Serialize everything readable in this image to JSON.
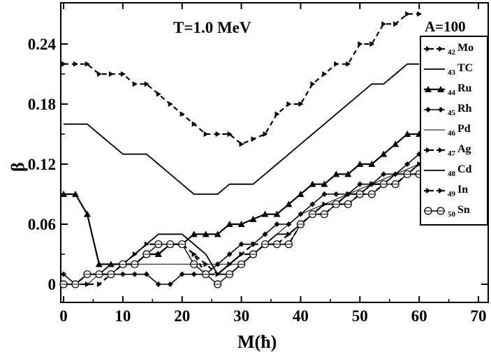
{
  "chart_data": {
    "type": "line",
    "title": "",
    "annotation": "T=1.0 MeV",
    "xlabel": "M(ħ)",
    "ylabel": "β",
    "xlim": [
      0,
      70
    ],
    "ylim": [
      -0.02,
      0.28
    ],
    "xticks": [
      "0",
      "10",
      "20",
      "30",
      "40",
      "50",
      "60",
      "70"
    ],
    "yticks": [
      "0",
      "0.06",
      "0.12",
      "0.18",
      "0.24"
    ],
    "legend": {
      "title": "A=100",
      "placement": "top-right"
    },
    "series": [
      {
        "name": "Mo",
        "z": "42",
        "style": "dash-arrow",
        "x": [
          0,
          2,
          4,
          6,
          8,
          10,
          12,
          14,
          16,
          18,
          20,
          22,
          24,
          26,
          28,
          30,
          32,
          34,
          36,
          38,
          40,
          42,
          44,
          46,
          48,
          50,
          52,
          54,
          56,
          58,
          60
        ],
        "y": [
          0.22,
          0.22,
          0.22,
          0.21,
          0.21,
          0.21,
          0.2,
          0.2,
          0.19,
          0.18,
          0.17,
          0.16,
          0.15,
          0.15,
          0.15,
          0.14,
          0.145,
          0.15,
          0.17,
          0.18,
          0.18,
          0.2,
          0.21,
          0.22,
          0.22,
          0.24,
          0.24,
          0.26,
          0.26,
          0.27,
          0.27
        ]
      },
      {
        "name": "TC",
        "z": "43",
        "style": "solid",
        "x": [
          0,
          2,
          4,
          6,
          8,
          10,
          12,
          14,
          16,
          18,
          20,
          22,
          24,
          26,
          28,
          30,
          32,
          34,
          36,
          38,
          40,
          42,
          44,
          46,
          48,
          50,
          52,
          54,
          56,
          58,
          60
        ],
        "y": [
          0.16,
          0.16,
          0.16,
          0.15,
          0.14,
          0.13,
          0.13,
          0.13,
          0.12,
          0.11,
          0.1,
          0.09,
          0.09,
          0.09,
          0.1,
          0.1,
          0.1,
          0.11,
          0.12,
          0.13,
          0.14,
          0.15,
          0.16,
          0.17,
          0.18,
          0.19,
          0.2,
          0.2,
          0.21,
          0.22,
          0.22
        ]
      },
      {
        "name": "Ru",
        "z": "44",
        "style": "solid-triangle",
        "x": [
          0,
          2,
          4,
          6,
          8,
          10,
          12,
          14,
          16,
          18,
          20,
          22,
          24,
          26,
          28,
          30,
          32,
          34,
          36,
          38,
          40,
          42,
          44,
          46,
          48,
          50,
          52,
          54,
          56,
          58,
          60
        ],
        "y": [
          0.09,
          0.09,
          0.07,
          0.02,
          0.02,
          0.02,
          0.02,
          0.03,
          0.03,
          0.04,
          0.04,
          0.05,
          0.05,
          0.05,
          0.06,
          0.06,
          0.065,
          0.07,
          0.07,
          0.08,
          0.09,
          0.1,
          0.1,
          0.11,
          0.11,
          0.12,
          0.12,
          0.13,
          0.14,
          0.15,
          0.15
        ]
      },
      {
        "name": "Rh",
        "z": "45",
        "style": "solid-diamond",
        "x": [
          0,
          2,
          4,
          6,
          8,
          10,
          12,
          14,
          16,
          18,
          20,
          22,
          24,
          26,
          28,
          30,
          32,
          34,
          36,
          38,
          40,
          42,
          44,
          46,
          48,
          50,
          52,
          54,
          56,
          58,
          60
        ],
        "y": [
          0.01,
          0.0,
          0.01,
          0.01,
          0.01,
          0.01,
          0.01,
          0.01,
          0.0,
          0.0,
          0.01,
          0.01,
          0.01,
          0.02,
          0.03,
          0.04,
          0.04,
          0.05,
          0.06,
          0.06,
          0.07,
          0.08,
          0.09,
          0.09,
          0.09,
          0.1,
          0.1,
          0.11,
          0.11,
          0.12,
          0.13
        ]
      },
      {
        "name": "Pd",
        "z": "46",
        "style": "thin",
        "x": [
          0,
          2,
          4,
          6,
          8,
          10,
          12,
          14,
          16,
          18,
          20,
          22,
          24,
          26,
          28,
          30,
          32,
          34,
          36,
          38,
          40,
          42,
          44,
          46,
          48,
          50,
          52,
          54,
          56,
          58,
          60
        ],
        "y": [
          0.0,
          0.0,
          0.0,
          0.01,
          0.02,
          0.02,
          0.02,
          0.02,
          0.02,
          0.02,
          0.02,
          0.02,
          0.02,
          0.02,
          0.02,
          0.02,
          0.03,
          0.04,
          0.05,
          0.06,
          0.07,
          0.075,
          0.08,
          0.085,
          0.09,
          0.095,
          0.1,
          0.105,
          0.11,
          0.115,
          0.12
        ]
      },
      {
        "name": "Ag",
        "z": "47",
        "style": "dash-arrow",
        "x": [
          0,
          2,
          4,
          6,
          8,
          10,
          12,
          14,
          16,
          18,
          20,
          22,
          24,
          26,
          28,
          30,
          32,
          34,
          36,
          38,
          40,
          42,
          44,
          46,
          48,
          50,
          52,
          54,
          56,
          58,
          60
        ],
        "y": [
          0.0,
          0.0,
          0.0,
          0.0,
          0.01,
          0.02,
          0.03,
          0.04,
          0.04,
          0.04,
          0.04,
          0.03,
          0.02,
          0.01,
          0.02,
          0.03,
          0.04,
          0.04,
          0.04,
          0.05,
          0.06,
          0.07,
          0.08,
          0.08,
          0.09,
          0.09,
          0.1,
          0.1,
          0.1,
          0.11,
          0.12
        ]
      },
      {
        "name": "Cd",
        "z": "48",
        "style": "solid",
        "x": [
          0,
          2,
          4,
          6,
          8,
          10,
          12,
          14,
          16,
          18,
          20,
          22,
          24,
          26,
          28,
          30,
          32,
          34,
          36,
          38,
          40,
          42,
          44,
          46,
          48,
          50,
          52,
          54,
          56,
          58,
          60
        ],
        "y": [
          0.0,
          0.0,
          0.01,
          0.01,
          0.02,
          0.02,
          0.03,
          0.04,
          0.05,
          0.05,
          0.05,
          0.04,
          0.03,
          0.01,
          0.01,
          0.02,
          0.03,
          0.04,
          0.05,
          0.05,
          0.06,
          0.07,
          0.08,
          0.08,
          0.09,
          0.09,
          0.1,
          0.1,
          0.11,
          0.11,
          0.12
        ]
      },
      {
        "name": "In",
        "z": "49",
        "style": "dash-arrow",
        "x": [
          0,
          2,
          4,
          6,
          8,
          10,
          12,
          14,
          16,
          18,
          20,
          22,
          24,
          26,
          28,
          30,
          32,
          34,
          36,
          38,
          40,
          42,
          44,
          46,
          48,
          50,
          52,
          54,
          56,
          58,
          60
        ],
        "y": [
          0.0,
          0.0,
          0.01,
          0.01,
          0.01,
          0.02,
          0.02,
          0.03,
          0.03,
          0.04,
          0.04,
          0.03,
          0.01,
          0.01,
          0.02,
          0.03,
          0.03,
          0.04,
          0.04,
          0.04,
          0.06,
          0.07,
          0.07,
          0.08,
          0.08,
          0.09,
          0.09,
          0.1,
          0.1,
          0.11,
          0.11
        ]
      },
      {
        "name": "Sn",
        "z": "50",
        "style": "solid-circle",
        "x": [
          0,
          2,
          4,
          6,
          8,
          10,
          12,
          14,
          16,
          18,
          20,
          22,
          24,
          26,
          28,
          30,
          32,
          34,
          36,
          38,
          40,
          42,
          44,
          46,
          48,
          50,
          52,
          54,
          56,
          58,
          60
        ],
        "y": [
          0.0,
          0.0,
          0.01,
          0.01,
          0.01,
          0.02,
          0.02,
          0.03,
          0.04,
          0.04,
          0.04,
          0.02,
          0.01,
          0.0,
          0.01,
          0.02,
          0.03,
          0.04,
          0.04,
          0.04,
          0.06,
          0.07,
          0.07,
          0.08,
          0.08,
          0.09,
          0.09,
          0.1,
          0.1,
          0.11,
          0.11
        ]
      }
    ]
  }
}
